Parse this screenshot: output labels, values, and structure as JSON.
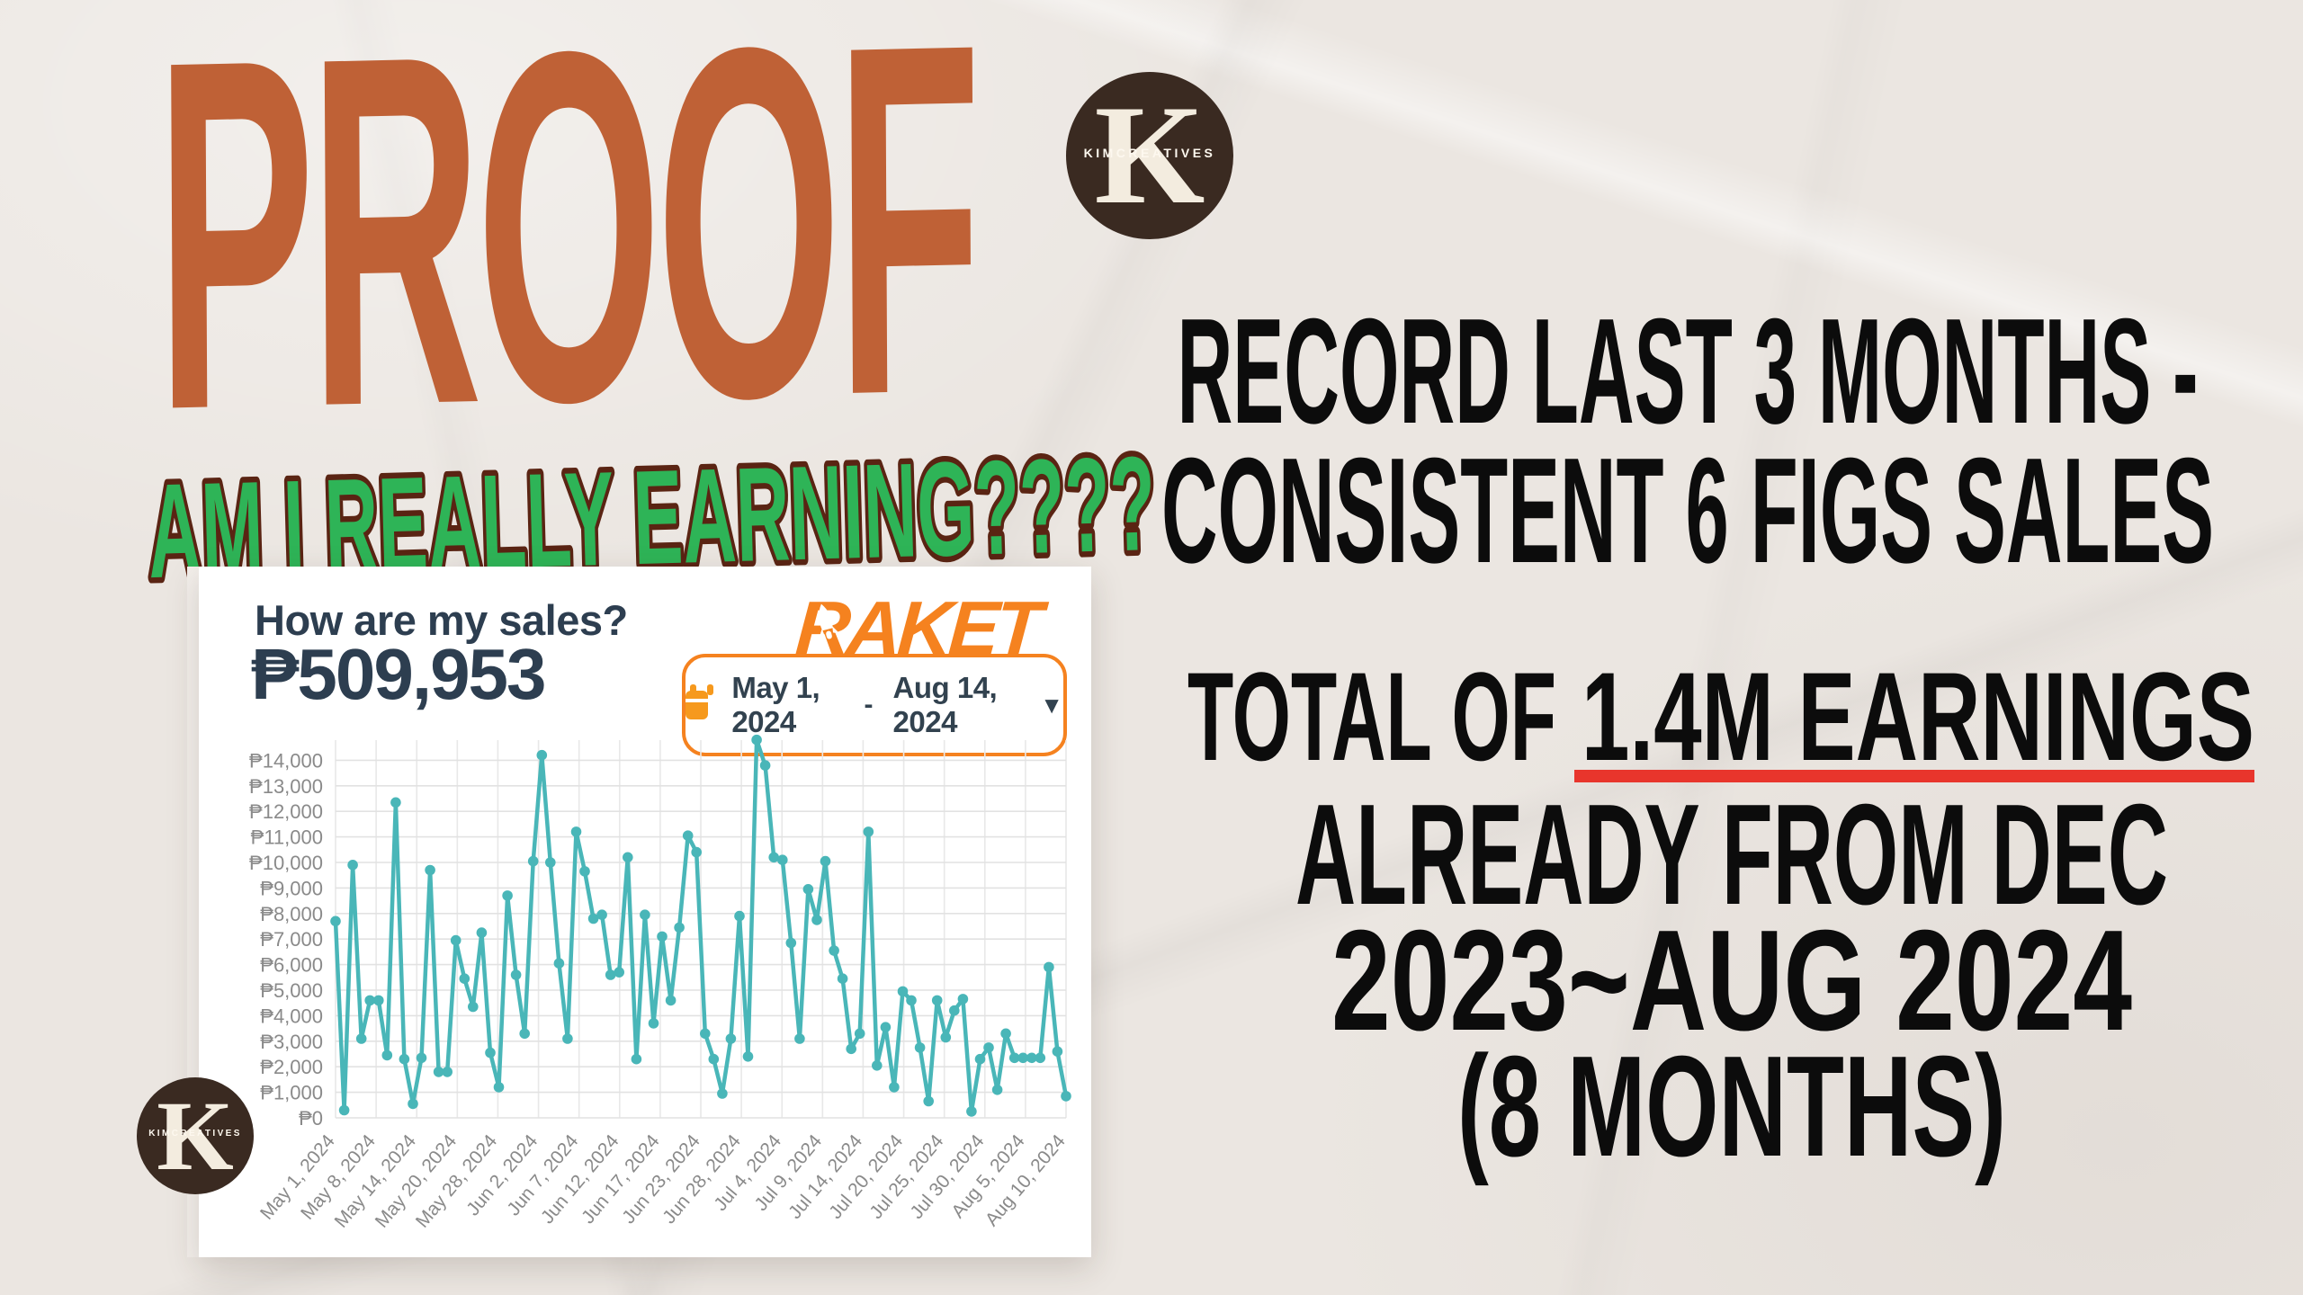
{
  "headline": {
    "title": "PROOF",
    "title_color": "#bf6136",
    "subline": "AM I REALLY EARNING????",
    "subline_fill": "#2eb457",
    "subline_outline": "#5a2413"
  },
  "logo": {
    "initial": "K",
    "name": "KIMCREATIVES",
    "bg_color": "#3a2a21",
    "fg_color": "#f3ecdf"
  },
  "right_column": {
    "record_line1": "RECORD LAST 3 MONTHS -",
    "record_line2": "CONSISTENT 6 FIGS SALES",
    "total_prefix": "TOTAL OF",
    "total_highlight": "1.4M EARNINGS",
    "highlight_color": "#e8352c",
    "from_line": "ALREADY FROM DEC",
    "range_line": "2023~AUG 2024",
    "months_line": "(8 MONTHS)"
  },
  "dashboard": {
    "question": "How are my sales?",
    "amount": "₱509,953",
    "brand": "RAKET",
    "brand_color": "#f5821f",
    "accent_color": "#f5821f",
    "date_range": {
      "start": "May 1, 2024",
      "separator": "-",
      "end": "Aug 14, 2024",
      "caret": "▼"
    }
  },
  "chart_data": {
    "type": "line",
    "title": "How are my sales?",
    "series_color": "#49b6b8",
    "grid": true,
    "ylim": [
      0,
      14000
    ],
    "y_tick_labels": [
      "₱0",
      "₱1,000",
      "₱2,000",
      "₱3,000",
      "₱4,000",
      "₱5,000",
      "₱6,000",
      "₱7,000",
      "₱8,000",
      "₱9,000",
      "₱10,000",
      "₱11,000",
      "₱12,000",
      "₱13,000",
      "₱14,000"
    ],
    "x_tick_labels": [
      "May 1, 2024",
      "May 8, 2024",
      "May 14, 2024",
      "May 20, 2024",
      "May 28, 2024",
      "Jun 2, 2024",
      "Jun 7, 2024",
      "Jun 12, 2024",
      "Jun 17, 2024",
      "Jun 23, 2024",
      "Jun 28, 2024",
      "Jul 4, 2024",
      "Jul 9, 2024",
      "Jul 14, 2024",
      "Jul 20, 2024",
      "Jul 25, 2024",
      "Jul 30, 2024",
      "Aug 5, 2024",
      "Aug 10, 2024"
    ],
    "values": [
      7700,
      300,
      9900,
      3100,
      4600,
      4600,
      2450,
      12350,
      2300,
      550,
      2350,
      9700,
      1800,
      1800,
      6950,
      5450,
      4350,
      7250,
      2550,
      1200,
      8700,
      5600,
      3300,
      10050,
      14200,
      10000,
      6050,
      3100,
      11200,
      9650,
      7800,
      7950,
      5600,
      5700,
      10200,
      2300,
      7950,
      3700,
      7100,
      4600,
      7450,
      11050,
      10400,
      3300,
      2300,
      950,
      3100,
      7900,
      2400,
      14800,
      13800,
      10200,
      10100,
      6850,
      3100,
      8950,
      7750,
      10050,
      6550,
      5450,
      2700,
      3300,
      11200,
      2050,
      3550,
      1200,
      4950,
      4600,
      2750,
      650,
      4600,
      3150,
      4200,
      4650,
      250,
      2300,
      2750,
      1100,
      3300,
      2350,
      2350,
      2350,
      2350,
      5900,
      2600,
      850
    ]
  }
}
